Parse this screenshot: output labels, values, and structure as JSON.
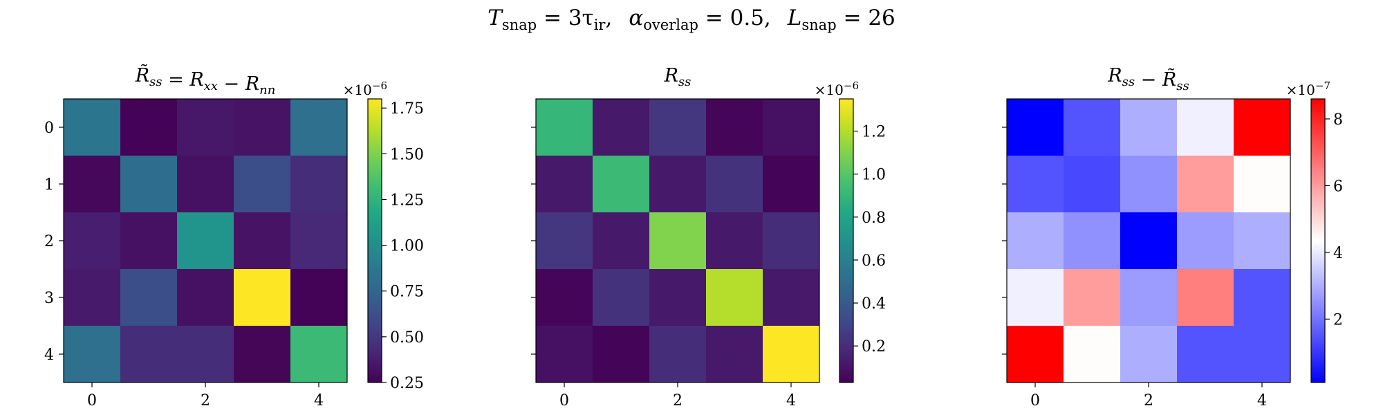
{
  "suptitle": {
    "t_label": "T",
    "t_sub": "snap",
    "t_value": " = 3τ",
    "t_value_sub": "ir",
    "alpha_label": "α",
    "alpha_sub": "overlap",
    "alpha_value": " = 0.5,",
    "l_label": "L",
    "l_sub": "snap",
    "l_value": " = 26"
  },
  "chart_data": [
    {
      "type": "heatmap",
      "title": "R̃ss = Rxx − Rnn",
      "colormap": "viridis",
      "x_ticks": [
        "0",
        "2",
        "4"
      ],
      "y_ticks": [
        "0",
        "1",
        "2",
        "3",
        "4"
      ],
      "scale_label": "×10−6",
      "colorbar": {
        "vmin": 0.25,
        "vmax": 1.8,
        "ticks": [
          "0.25",
          "0.50",
          "0.75",
          "1.00",
          "1.25",
          "1.50",
          "1.75"
        ],
        "tick_values": [
          0.25,
          0.5,
          0.75,
          1.0,
          1.25,
          1.5,
          1.75
        ]
      },
      "matrix": [
        [
          0.85,
          0.26,
          0.35,
          0.33,
          0.82
        ],
        [
          0.28,
          0.8,
          0.32,
          0.62,
          0.45
        ],
        [
          0.38,
          0.32,
          1.05,
          0.33,
          0.43
        ],
        [
          0.36,
          0.62,
          0.32,
          1.8,
          0.26
        ],
        [
          0.82,
          0.45,
          0.45,
          0.27,
          1.3
        ]
      ]
    },
    {
      "type": "heatmap",
      "title": "Rss",
      "colormap": "viridis",
      "x_ticks": [
        "0",
        "2",
        "4"
      ],
      "y_ticks": [
        "0",
        "1",
        "2",
        "3",
        "4"
      ],
      "scale_label": "×10−6",
      "colorbar": {
        "vmin": 0.03,
        "vmax": 1.35,
        "ticks": [
          "0.2",
          "0.4",
          "0.6",
          "0.8",
          "1.0",
          "1.2"
        ],
        "tick_values": [
          0.2,
          0.4,
          0.6,
          0.8,
          1.0,
          1.2
        ]
      },
      "matrix": [
        [
          0.9,
          0.12,
          0.24,
          0.05,
          0.09
        ],
        [
          0.12,
          0.92,
          0.12,
          0.22,
          0.04
        ],
        [
          0.24,
          0.12,
          1.1,
          0.12,
          0.2
        ],
        [
          0.05,
          0.22,
          0.12,
          1.2,
          0.12
        ],
        [
          0.09,
          0.04,
          0.2,
          0.12,
          1.35
        ]
      ]
    },
    {
      "type": "heatmap",
      "title": "Rss − R̃ss",
      "colormap": "bwr",
      "x_ticks": [
        "0",
        "2",
        "4"
      ],
      "y_ticks": [
        "0",
        "1",
        "2",
        "3",
        "4"
      ],
      "scale_label": "×10−7",
      "colorbar": {
        "vmin": 0.1,
        "vmax": 8.6,
        "ticks": [
          "2",
          "4",
          "6",
          "8"
        ],
        "tick_values": [
          2,
          4,
          6,
          8
        ]
      },
      "matrix": [
        [
          0.1,
          1.5,
          3.0,
          4.1,
          8.6
        ],
        [
          1.5,
          1.3,
          2.5,
          6.0,
          4.4
        ],
        [
          3.0,
          2.5,
          0.1,
          2.7,
          3.0
        ],
        [
          4.1,
          6.0,
          2.7,
          6.5,
          1.5
        ],
        [
          8.6,
          4.4,
          3.0,
          1.5,
          1.5
        ]
      ]
    }
  ],
  "colors": {
    "axis": "#000000",
    "background": "#ffffff"
  }
}
